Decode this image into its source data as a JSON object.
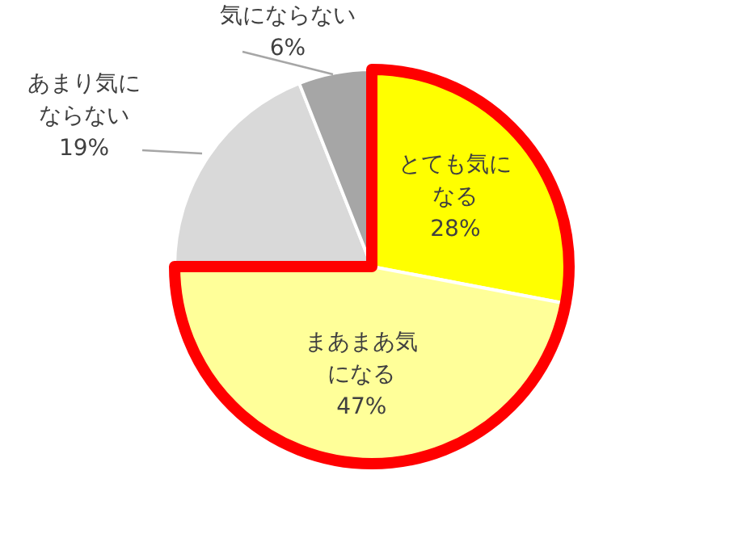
{
  "chart_data": {
    "type": "pie",
    "categories": [
      "とても気になる",
      "まあまあ気になる",
      "あまり気にならない",
      "気にならない"
    ],
    "values": [
      28,
      47,
      19,
      6
    ],
    "colors": [
      "#ffff00",
      "#ffff99",
      "#d9d9d9",
      "#a6a6a6"
    ],
    "value_labels": [
      "28%",
      "47%",
      "19%",
      "6%"
    ]
  }
}
